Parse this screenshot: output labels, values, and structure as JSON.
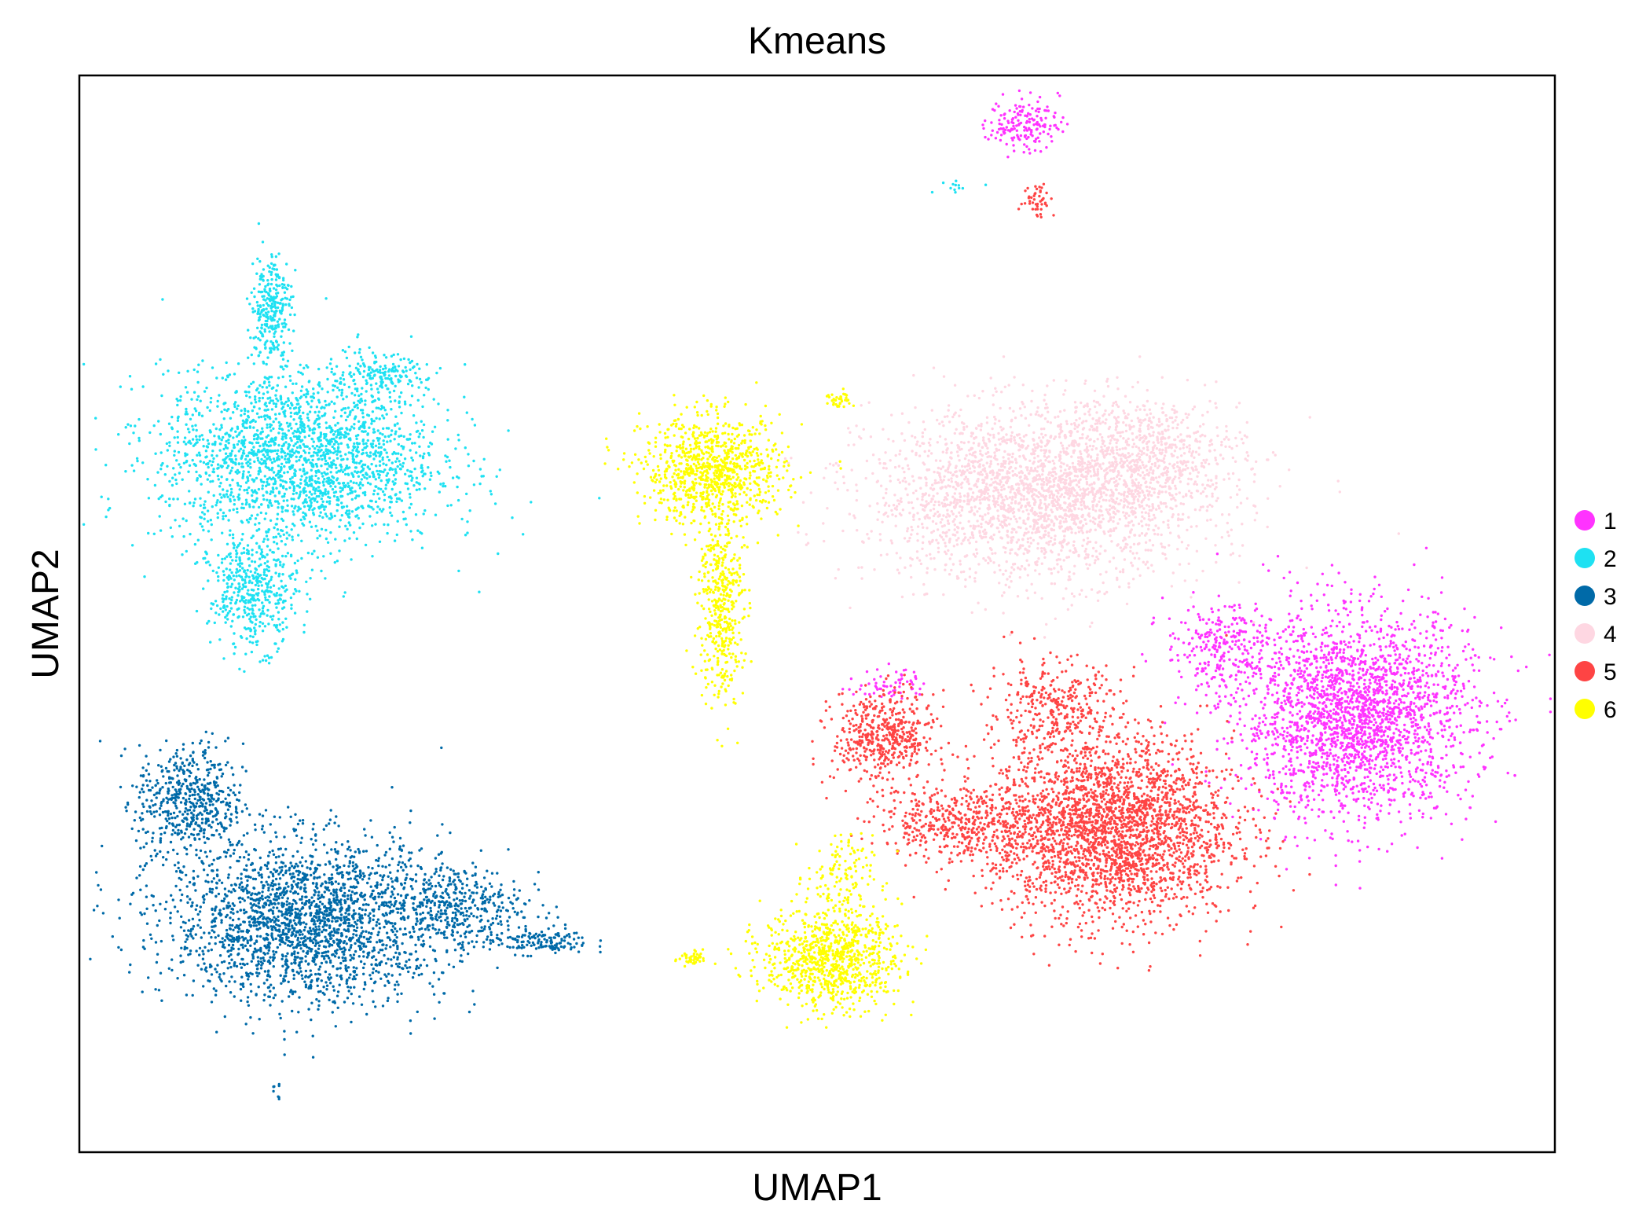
{
  "chart_data": {
    "type": "scatter",
    "title": "Kmeans",
    "xlabel": "UMAP1",
    "ylabel": "UMAP2",
    "xlim": [
      0,
      100
    ],
    "ylim": [
      0,
      100
    ],
    "ticks_shown": false,
    "grid": false,
    "legend": {
      "placement": "right",
      "entries": [
        {
          "label": "1",
          "color": "#ff33ff"
        },
        {
          "label": "2",
          "color": "#1ee1f2"
        },
        {
          "label": "3",
          "color": "#006aa8"
        },
        {
          "label": "4",
          "color": "#fed7e2"
        },
        {
          "label": "5",
          "color": "#fe4444"
        },
        {
          "label": "6",
          "color": "#ffff00"
        }
      ]
    },
    "series": [
      {
        "name": "1",
        "color": "#ff33ff",
        "blobs": [
          {
            "cx": 86.5,
            "cy": 40.5,
            "sx": 5.3,
            "sy": 6.3,
            "n": 2400
          },
          {
            "cx": 77.5,
            "cy": 47.0,
            "sx": 2.6,
            "sy": 2.6,
            "n": 260
          },
          {
            "cx": 64.0,
            "cy": 95.5,
            "sx": 1.6,
            "sy": 1.6,
            "n": 170
          },
          {
            "cx": 55.0,
            "cy": 43.5,
            "sx": 1.6,
            "sy": 1.0,
            "n": 60
          }
        ]
      },
      {
        "name": "2",
        "color": "#1ee1f2",
        "blobs": [
          {
            "cx": 15.0,
            "cy": 64.5,
            "sx": 6.3,
            "sy": 5.5,
            "n": 2200
          },
          {
            "cx": 11.8,
            "cy": 52.0,
            "sx": 2.0,
            "sy": 3.5,
            "n": 450
          },
          {
            "cx": 13.0,
            "cy": 78.5,
            "sx": 0.9,
            "sy": 3.4,
            "n": 280
          },
          {
            "cx": 20.5,
            "cy": 72.0,
            "sx": 2.0,
            "sy": 1.3,
            "n": 150
          },
          {
            "cx": 59.5,
            "cy": 89.7,
            "sx": 1.4,
            "sy": 0.3,
            "n": 12
          }
        ]
      },
      {
        "name": "3",
        "color": "#006aa8",
        "blobs": [
          {
            "cx": 15.5,
            "cy": 21.5,
            "sx": 6.3,
            "sy": 5.0,
            "n": 2300
          },
          {
            "cx": 7.5,
            "cy": 32.5,
            "sx": 2.4,
            "sy": 3.6,
            "n": 550
          },
          {
            "cx": 25.5,
            "cy": 23.0,
            "sx": 3.0,
            "sy": 2.5,
            "n": 350
          },
          {
            "cx": 31.0,
            "cy": 19.6,
            "sx": 2.4,
            "sy": 0.8,
            "n": 150
          },
          {
            "cx": 13.5,
            "cy": 5.5,
            "sx": 0.3,
            "sy": 0.7,
            "n": 8
          }
        ]
      },
      {
        "name": "4",
        "color": "#fed7e2",
        "blobs": [
          {
            "cx": 65.0,
            "cy": 61.0,
            "sx": 7.6,
            "sy": 5.2,
            "n": 2600
          },
          {
            "cx": 72.0,
            "cy": 65.0,
            "sx": 4.6,
            "sy": 3.6,
            "n": 600
          }
        ]
      },
      {
        "name": "5",
        "color": "#fe4444",
        "blobs": [
          {
            "cx": 70.0,
            "cy": 30.0,
            "sx": 5.4,
            "sy": 5.6,
            "n": 2700
          },
          {
            "cx": 54.5,
            "cy": 38.5,
            "sx": 2.3,
            "sy": 2.8,
            "n": 500
          },
          {
            "cx": 60.0,
            "cy": 30.5,
            "sx": 4.0,
            "sy": 2.2,
            "n": 450
          },
          {
            "cx": 66.0,
            "cy": 41.0,
            "sx": 3.0,
            "sy": 3.2,
            "n": 350
          },
          {
            "cx": 65.0,
            "cy": 88.5,
            "sx": 0.7,
            "sy": 1.1,
            "n": 45
          }
        ]
      },
      {
        "name": "6",
        "color": "#ffff00",
        "blobs": [
          {
            "cx": 43.0,
            "cy": 63.3,
            "sx": 3.2,
            "sy": 3.3,
            "n": 900
          },
          {
            "cx": 43.5,
            "cy": 51.0,
            "sx": 1.0,
            "sy": 6.2,
            "n": 450
          },
          {
            "cx": 51.0,
            "cy": 18.0,
            "sx": 3.1,
            "sy": 3.1,
            "n": 900
          },
          {
            "cx": 41.5,
            "cy": 18.0,
            "sx": 0.7,
            "sy": 0.5,
            "n": 45
          },
          {
            "cx": 51.5,
            "cy": 69.8,
            "sx": 0.6,
            "sy": 0.6,
            "n": 35
          },
          {
            "cx": 51.5,
            "cy": 25.5,
            "sx": 1.5,
            "sy": 2.6,
            "n": 120
          }
        ]
      }
    ]
  }
}
